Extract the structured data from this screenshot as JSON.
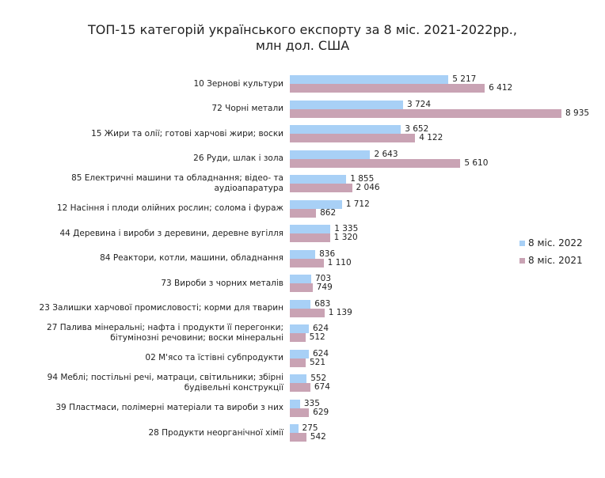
{
  "chart_data": {
    "type": "hbar",
    "title": [
      "ТОП-15 категорій українського експорту за 8 міс. 2021-2022рр.,",
      "млн дол. США"
    ],
    "categories": [
      "10 Зернові культури",
      "72 Чорні метали",
      "15 Жири та олії; готові харчові жири; воски",
      "26 Руди, шлак і зола",
      "85 Електричні машини та обладнання; відео- та аудіоапаратура",
      "12 Насіння і плоди олійних рослин; солома і фураж",
      "44 Деревина і вироби з деревини, деревне вугілля",
      "84 Реактори, котли, машини, обладнання",
      "73 Вироби з чорних металів",
      "23 Залишки харчової промисловості; корми для тварин",
      "27 Палива мінеральні; нафта і продукти її перегонки; бітумінозні речовини; воски мінеральні",
      "02 М'ясо та їстівні субпродукти",
      "94 Меблі; постільні речі, матраци, світильники; збірні будівельні конструкції",
      "39 Пластмаси, полімерні матеріали та вироби з них",
      "28 Продукти неорганічної хімії"
    ],
    "series": [
      {
        "name": "8 міс. 2022",
        "color": "#a8d0f6",
        "values": [
          5217,
          3724,
          3652,
          2643,
          1855,
          1712,
          1335,
          836,
          703,
          683,
          624,
          624,
          552,
          335,
          275
        ],
        "value_labels": [
          "5 217",
          "3 724",
          "3 652",
          "2 643",
          "1 855",
          "1 712",
          "1 335",
          "836",
          "703",
          "683",
          "624",
          "624",
          "552",
          "335",
          "275"
        ]
      },
      {
        "name": "8 міс. 2021",
        "color": "#c9a3b4",
        "values": [
          6412,
          8935,
          4122,
          5610,
          2046,
          862,
          1320,
          1110,
          749,
          1139,
          512,
          521,
          674,
          629,
          542
        ],
        "value_labels": [
          "6 412",
          "8 935",
          "4 122",
          "5 610",
          "2 046",
          "862",
          "1 320",
          "1 110",
          "749",
          "1 139",
          "512",
          "521",
          "674",
          "629",
          "542"
        ]
      }
    ],
    "legend": "right"
  }
}
